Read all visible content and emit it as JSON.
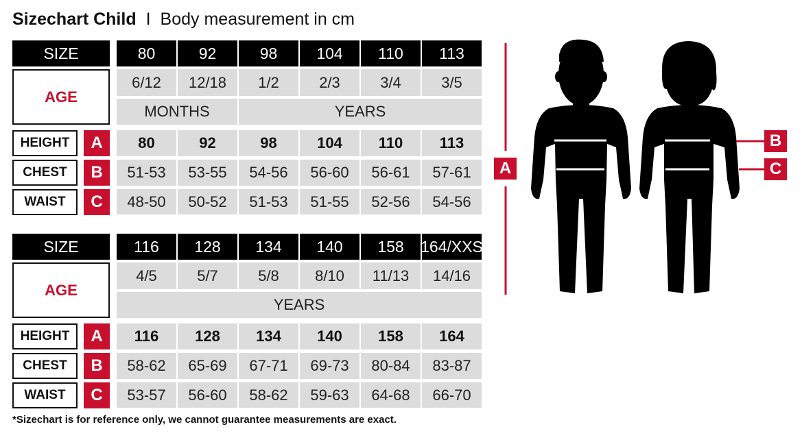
{
  "title": {
    "main": "Sizechart Child",
    "separator": "I",
    "subtitle": "Body measurement in cm"
  },
  "labels": {
    "size": "SIZE",
    "age": "AGE",
    "height": "HEIGHT",
    "chest": "CHEST",
    "waist": "WAIST",
    "height_letter": "A",
    "chest_letter": "B",
    "waist_letter": "C"
  },
  "tables": [
    {
      "sizes": [
        "80",
        "92",
        "98",
        "104",
        "110",
        "113"
      ],
      "ages": [
        "6/12",
        "12/18",
        "1/2",
        "2/3",
        "3/4",
        "3/5"
      ],
      "age_units": [
        {
          "label": "MONTHS",
          "span": 2
        },
        {
          "label": "YEARS",
          "span": 4
        }
      ],
      "height": [
        "80",
        "92",
        "98",
        "104",
        "110",
        "113"
      ],
      "chest": [
        "51-53",
        "53-55",
        "54-56",
        "56-60",
        "56-61",
        "57-61"
      ],
      "waist": [
        "48-50",
        "50-52",
        "51-53",
        "51-55",
        "52-56",
        "54-56"
      ]
    },
    {
      "sizes": [
        "116",
        "128",
        "134",
        "140",
        "158",
        "164/XXS"
      ],
      "ages": [
        "4/5",
        "5/7",
        "5/8",
        "8/10",
        "11/13",
        "14/16"
      ],
      "age_units": [
        {
          "label": "YEARS",
          "span": 6
        }
      ],
      "height": [
        "116",
        "128",
        "134",
        "140",
        "158",
        "164"
      ],
      "chest": [
        "58-62",
        "65-69",
        "67-71",
        "69-73",
        "80-84",
        "83-87"
      ],
      "waist": [
        "53-57",
        "56-60",
        "58-62",
        "59-63",
        "64-68",
        "66-70"
      ]
    }
  ],
  "figure": {
    "height_marker": "A",
    "chest_marker": "B",
    "waist_marker": "C"
  },
  "colors": {
    "accent": "#c8102e",
    "header": "#000000",
    "cell": "#dcdcdc"
  },
  "note": "*Sizechart is for reference only, we cannot guarantee measurements are exact."
}
